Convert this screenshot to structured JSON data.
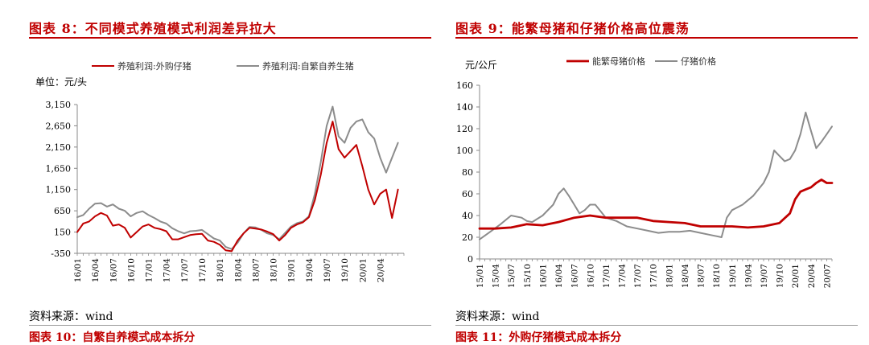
{
  "charts": [
    {
      "figure_title": "图表 8：不同模式养殖模式利润差异拉大",
      "source": "资料来源：wind",
      "next_title_fragment": "图表 10：自繁自养模式成本拆分",
      "colors": {
        "series1": "#c00000",
        "series2": "#8c8c8c"
      }
    },
    {
      "figure_title": "图表 9：能繁母猪和仔猪价格高位震荡",
      "source": "资料来源：wind",
      "next_title_fragment": "图表 11：外购仔猪模式成本拆分",
      "colors": {
        "series1": "#c00000",
        "series2": "#8c8c8c"
      }
    }
  ],
  "chart_data": [
    {
      "type": "line",
      "unit_label": "单位：元/头",
      "ylim": [
        -350,
        3150
      ],
      "yticks": [
        "-350",
        "150",
        "650",
        "1,150",
        "1,650",
        "2,150",
        "2,650",
        "3,150"
      ],
      "ytick_values": [
        -350,
        150,
        650,
        1150,
        1650,
        2150,
        2650,
        3150
      ],
      "xlim": [
        0,
        55
      ],
      "xticks": [
        "16/01",
        "16/04",
        "16/07",
        "16/10",
        "17/01",
        "17/04",
        "17/07",
        "17/10",
        "18/01",
        "18/04",
        "18/07",
        "18/10",
        "19/01",
        "19/04",
        "19/07",
        "19/10",
        "20/01",
        "20/04"
      ],
      "xtick_positions": [
        0,
        3,
        6,
        9,
        12,
        15,
        18,
        21,
        24,
        27,
        30,
        33,
        36,
        39,
        42,
        45,
        48,
        51
      ],
      "legend_placement": "top",
      "series": [
        {
          "name": "养殖利润:外购仔猪",
          "points": [
            [
              0,
              150
            ],
            [
              1,
              350
            ],
            [
              2,
              400
            ],
            [
              3,
              520
            ],
            [
              4,
              600
            ],
            [
              5,
              540
            ],
            [
              6,
              300
            ],
            [
              7,
              330
            ],
            [
              8,
              250
            ],
            [
              9,
              20
            ],
            [
              10,
              150
            ],
            [
              11,
              280
            ],
            [
              12,
              330
            ],
            [
              13,
              250
            ],
            [
              14,
              220
            ],
            [
              15,
              170
            ],
            [
              16,
              -20
            ],
            [
              17,
              -20
            ],
            [
              18,
              30
            ],
            [
              19,
              80
            ],
            [
              20,
              100
            ],
            [
              21,
              110
            ],
            [
              22,
              -50
            ],
            [
              23,
              -80
            ],
            [
              24,
              -150
            ],
            [
              25,
              -280
            ],
            [
              26,
              -300
            ],
            [
              27,
              -50
            ],
            [
              28,
              120
            ],
            [
              29,
              250
            ],
            [
              30,
              230
            ],
            [
              31,
              210
            ],
            [
              32,
              160
            ],
            [
              33,
              100
            ],
            [
              34,
              -50
            ],
            [
              35,
              80
            ],
            [
              36,
              250
            ],
            [
              37,
              330
            ],
            [
              38,
              380
            ],
            [
              39,
              500
            ],
            [
              40,
              900
            ],
            [
              41,
              1500
            ],
            [
              42,
              2250
            ],
            [
              43,
              2750
            ],
            [
              44,
              2100
            ],
            [
              45,
              1900
            ],
            [
              46,
              2050
            ],
            [
              47,
              2200
            ],
            [
              48,
              1700
            ],
            [
              49,
              1150
            ],
            [
              50,
              800
            ],
            [
              51,
              1050
            ],
            [
              52,
              1150
            ],
            [
              53,
              480
            ],
            [
              54,
              1150
            ]
          ]
        },
        {
          "name": "养殖利润:自繁自养生猪",
          "points": [
            [
              0,
              500
            ],
            [
              1,
              550
            ],
            [
              2,
              700
            ],
            [
              3,
              820
            ],
            [
              4,
              830
            ],
            [
              5,
              750
            ],
            [
              6,
              800
            ],
            [
              7,
              700
            ],
            [
              8,
              650
            ],
            [
              9,
              520
            ],
            [
              10,
              600
            ],
            [
              11,
              640
            ],
            [
              12,
              550
            ],
            [
              13,
              480
            ],
            [
              14,
              400
            ],
            [
              15,
              350
            ],
            [
              16,
              240
            ],
            [
              17,
              170
            ],
            [
              18,
              120
            ],
            [
              19,
              170
            ],
            [
              20,
              180
            ],
            [
              21,
              200
            ],
            [
              22,
              100
            ],
            [
              23,
              0
            ],
            [
              24,
              -50
            ],
            [
              25,
              -200
            ],
            [
              26,
              -250
            ],
            [
              27,
              -100
            ],
            [
              28,
              120
            ],
            [
              29,
              270
            ],
            [
              30,
              260
            ],
            [
              31,
              200
            ],
            [
              32,
              120
            ],
            [
              33,
              80
            ],
            [
              34,
              -20
            ],
            [
              35,
              130
            ],
            [
              36,
              280
            ],
            [
              37,
              360
            ],
            [
              38,
              400
            ],
            [
              39,
              520
            ],
            [
              40,
              1050
            ],
            [
              41,
              1800
            ],
            [
              42,
              2650
            ],
            [
              43,
              3100
            ],
            [
              44,
              2400
            ],
            [
              45,
              2250
            ],
            [
              46,
              2600
            ],
            [
              47,
              2750
            ],
            [
              48,
              2800
            ],
            [
              49,
              2500
            ],
            [
              50,
              2350
            ],
            [
              51,
              1900
            ],
            [
              52,
              1550
            ],
            [
              53,
              1900
            ],
            [
              54,
              2250
            ]
          ]
        }
      ]
    },
    {
      "type": "line",
      "unit_label": "元/公斤",
      "ylim": [
        0,
        160
      ],
      "yticks": [
        "0",
        "20",
        "40",
        "60",
        "80",
        "100",
        "120",
        "140",
        "160"
      ],
      "ytick_values": [
        0,
        20,
        40,
        60,
        80,
        100,
        120,
        140,
        160
      ],
      "xlim": [
        0,
        67
      ],
      "xticks": [
        "15/01",
        "15/04",
        "15/07",
        "15/10",
        "16/01",
        "16/04",
        "16/07",
        "16/10",
        "17/01",
        "17/04",
        "17/07",
        "17/10",
        "18/01",
        "18/04",
        "18/07",
        "18/10",
        "19/01",
        "19/04",
        "19/07",
        "19/10",
        "20/01",
        "20/04",
        "20/07"
      ],
      "xtick_positions": [
        0,
        3,
        6,
        9,
        12,
        15,
        18,
        21,
        24,
        27,
        30,
        33,
        36,
        39,
        42,
        45,
        48,
        51,
        54,
        57,
        60,
        63,
        66
      ],
      "legend_placement": "top",
      "series": [
        {
          "name": "能繁母猪价格",
          "points": [
            [
              0,
              28
            ],
            [
              3,
              28
            ],
            [
              6,
              29
            ],
            [
              9,
              32
            ],
            [
              12,
              31
            ],
            [
              15,
              34
            ],
            [
              18,
              38
            ],
            [
              21,
              40
            ],
            [
              24,
              38
            ],
            [
              27,
              38
            ],
            [
              30,
              38
            ],
            [
              33,
              35
            ],
            [
              36,
              34
            ],
            [
              39,
              33
            ],
            [
              42,
              30
            ],
            [
              45,
              30
            ],
            [
              48,
              30
            ],
            [
              51,
              29
            ],
            [
              54,
              30
            ],
            [
              57,
              33
            ],
            [
              59,
              42
            ],
            [
              60,
              55
            ],
            [
              61,
              62
            ],
            [
              62,
              64
            ],
            [
              63,
              66
            ],
            [
              64,
              70
            ],
            [
              65,
              73
            ],
            [
              66,
              70
            ],
            [
              67,
              70
            ]
          ]
        },
        {
          "name": "仔猪价格",
          "points": [
            [
              0,
              18
            ],
            [
              2,
              25
            ],
            [
              4,
              32
            ],
            [
              6,
              40
            ],
            [
              8,
              38
            ],
            [
              9,
              35
            ],
            [
              10,
              34
            ],
            [
              12,
              40
            ],
            [
              14,
              50
            ],
            [
              15,
              60
            ],
            [
              16,
              65
            ],
            [
              17,
              58
            ],
            [
              18,
              50
            ],
            [
              19,
              42
            ],
            [
              20,
              45
            ],
            [
              21,
              50
            ],
            [
              22,
              50
            ],
            [
              23,
              44
            ],
            [
              24,
              38
            ],
            [
              26,
              35
            ],
            [
              28,
              30
            ],
            [
              30,
              28
            ],
            [
              32,
              26
            ],
            [
              34,
              24
            ],
            [
              36,
              25
            ],
            [
              38,
              25
            ],
            [
              40,
              26
            ],
            [
              42,
              24
            ],
            [
              44,
              22
            ],
            [
              46,
              20
            ],
            [
              47,
              38
            ],
            [
              48,
              45
            ],
            [
              50,
              50
            ],
            [
              52,
              58
            ],
            [
              54,
              70
            ],
            [
              55,
              80
            ],
            [
              56,
              100
            ],
            [
              57,
              95
            ],
            [
              58,
              90
            ],
            [
              59,
              92
            ],
            [
              60,
              100
            ],
            [
              61,
              115
            ],
            [
              62,
              135
            ],
            [
              63,
              118
            ],
            [
              64,
              102
            ],
            [
              65,
              108
            ],
            [
              66,
              115
            ],
            [
              67,
              122
            ]
          ]
        }
      ]
    }
  ]
}
